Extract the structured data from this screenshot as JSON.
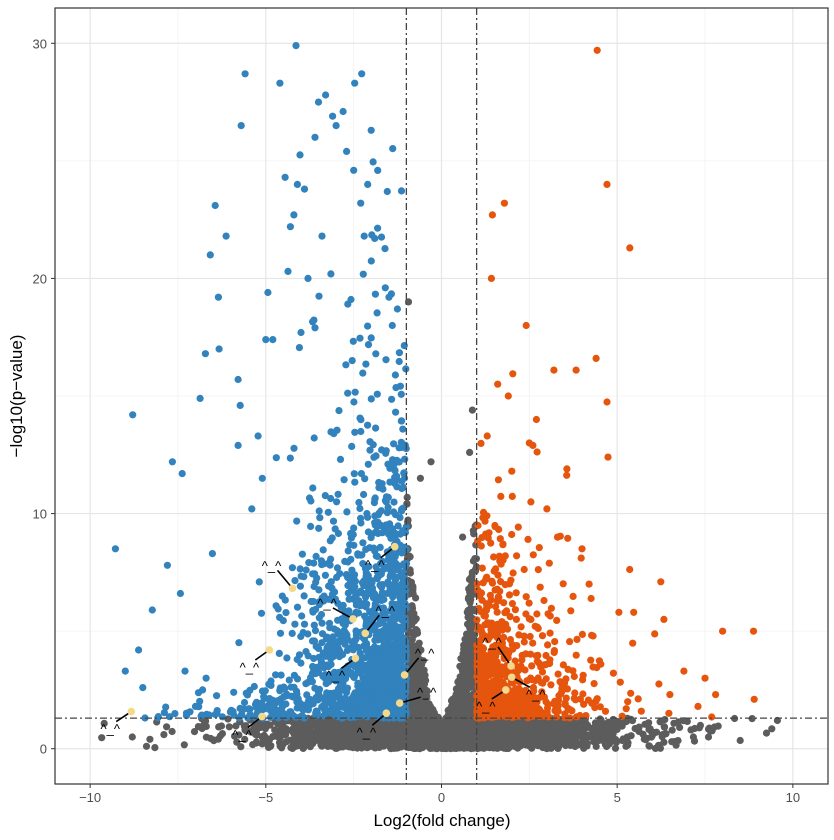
{
  "chart_data": {
    "type": "scatter",
    "title": "",
    "xlabel": "Log2(fold change)",
    "ylabel": "−log10(p−value)",
    "xlim": [
      -11,
      11
    ],
    "ylim": [
      -1.5,
      31.5
    ],
    "x_ticks": [
      -10,
      -5,
      0,
      5,
      10
    ],
    "y_ticks": [
      0,
      10,
      20,
      30
    ],
    "x_tick_labels": [
      "−10",
      "−5",
      "0",
      "5",
      "10"
    ],
    "y_tick_labels": [
      "0",
      "10",
      "20",
      "30"
    ],
    "grid": true,
    "legend": "none",
    "thresholds": {
      "log2fc": [
        -1,
        1
      ],
      "neg_log10_p": 1.3
    },
    "colors": {
      "down": "#3182BD",
      "up": "#E6550D",
      "ns": "#5C5C5C",
      "highlight": "#F5D98B",
      "threshold_line": "#444444"
    },
    "series": [
      {
        "name": "down",
        "points": [
          [
            -5.59,
            28.7
          ],
          [
            -4.14,
            29.9
          ],
          [
            -4.6,
            28.3
          ],
          [
            -2.47,
            28.3
          ],
          [
            -2.27,
            28.7
          ],
          [
            -5.7,
            26.5
          ],
          [
            -6.44,
            23.1
          ],
          [
            -6.13,
            21.8
          ],
          [
            -6.58,
            21.0
          ],
          [
            -6.35,
            19.2
          ],
          [
            -6.72,
            16.8
          ],
          [
            -6.33,
            17.0
          ],
          [
            -6.87,
            14.9
          ],
          [
            -8.79,
            14.2
          ],
          [
            -7.66,
            12.2
          ],
          [
            -7.38,
            11.7
          ],
          [
            -9.28,
            8.5
          ],
          [
            -6.52,
            8.3
          ],
          [
            -7.8,
            7.8
          ],
          [
            -7.43,
            6.6
          ],
          [
            -8.23,
            5.9
          ],
          [
            -8.62,
            4.2
          ],
          [
            -5.79,
            15.7
          ],
          [
            -5.73,
            14.6
          ],
          [
            -5.79,
            12.9
          ],
          [
            -5.22,
            13.3
          ],
          [
            -4.94,
            19.4
          ],
          [
            -4.37,
            20.3
          ],
          [
            -4.45,
            24.3
          ],
          [
            -3.3,
            27.8
          ],
          [
            -3.5,
            27.5
          ],
          [
            -3.1,
            26.9
          ],
          [
            -3.0,
            26.5
          ],
          [
            -2.8,
            27.1
          ],
          [
            -2.7,
            25.4
          ],
          [
            -3.6,
            26.0
          ],
          [
            -2.0,
            26.3
          ],
          [
            -4.1,
            24.0
          ],
          [
            -3.9,
            23.8
          ],
          [
            -2.5,
            24.6
          ],
          [
            -2.3,
            23.2
          ],
          [
            -2.1,
            24.0
          ],
          [
            -4.3,
            22.2
          ],
          [
            -5.0,
            17.4
          ],
          [
            -4.8,
            17.4
          ],
          [
            -5.4,
            10.2
          ],
          [
            -5.1,
            11.5
          ],
          [
            -9.0,
            3.3
          ],
          [
            -8.5,
            2.6
          ],
          [
            -7.3,
            3.3
          ],
          [
            -6.8,
            2.5
          ],
          [
            -6.7,
            3.0
          ],
          [
            -7.0,
            1.8
          ],
          [
            -4.2,
            22.7
          ],
          [
            -3.4,
            21.8
          ],
          [
            -2.2,
            21.8
          ],
          [
            -1.9,
            21.7
          ],
          [
            -3.8,
            20.0
          ],
          [
            -1.6,
            19.6
          ],
          [
            -4.0,
            17.7
          ],
          [
            -3.6,
            17.9
          ],
          [
            -1.4,
            18.0
          ]
        ]
      },
      {
        "name": "up",
        "points": [
          [
            4.43,
            29.7
          ],
          [
            4.71,
            24.0
          ],
          [
            5.36,
            21.3
          ],
          [
            1.79,
            23.2
          ],
          [
            1.45,
            22.7
          ],
          [
            1.42,
            20.0
          ],
          [
            2.41,
            18.0
          ],
          [
            4.4,
            16.6
          ],
          [
            3.83,
            16.1
          ],
          [
            3.2,
            16.1
          ],
          [
            4.74,
            12.4
          ],
          [
            3.57,
            11.9
          ],
          [
            6.24,
            7.1
          ],
          [
            8.0,
            5.0
          ],
          [
            8.88,
            5.0
          ],
          [
            5.05,
            5.8
          ],
          [
            5.47,
            5.8
          ],
          [
            6.33,
            5.5
          ],
          [
            8.9,
            2.1
          ],
          [
            1.9,
            15.0
          ],
          [
            1.6,
            15.5
          ],
          [
            2.7,
            14.0
          ],
          [
            2.5,
            13.0
          ],
          [
            3.3,
            9.0
          ],
          [
            4.0,
            8.5
          ],
          [
            3.0,
            10.2
          ],
          [
            7.5,
            3.0
          ],
          [
            7.3,
            1.8
          ],
          [
            6.9,
            3.3
          ],
          [
            7.8,
            2.3
          ],
          [
            5.3,
            2.0
          ],
          [
            6.5,
            2.3
          ],
          [
            2.6,
            12.9
          ],
          [
            1.3,
            13.3
          ],
          [
            2.0,
            11.8
          ],
          [
            4.2,
            7.0
          ]
        ]
      },
      {
        "name": "ns",
        "points": [
          [
            -0.94,
            19.0
          ],
          [
            0.88,
            14.4
          ],
          [
            9.56,
            1.2
          ],
          [
            8.5,
            0.35
          ],
          [
            -9.67,
            0.47
          ],
          [
            -8.8,
            0.5
          ],
          [
            -8.3,
            0.4
          ],
          [
            -0.3,
            12.2
          ],
          [
            -0.6,
            11.5
          ],
          [
            0.6,
            9.0
          ],
          [
            0.8,
            12.6
          ],
          [
            -7.9,
            0.6
          ],
          [
            7.1,
            0.8
          ],
          [
            7.6,
            0.5
          ]
        ]
      }
    ],
    "dense_clouds": {
      "down_count": 1600,
      "up_count": 800,
      "ns_base_count": 3600,
      "ns_center_count": 1300
    },
    "highlighted": [
      {
        "label": "^_^",
        "point": [
          -4.24,
          6.82
        ]
      },
      {
        "label": "^_^",
        "point": [
          -2.52,
          5.52
        ]
      },
      {
        "label": "^_^",
        "point": [
          -2.17,
          4.91
        ]
      },
      {
        "label": "^_^",
        "point": [
          -1.33,
          8.59
        ]
      },
      {
        "label": "^_^",
        "point": [
          -4.9,
          4.2
        ]
      },
      {
        "label": "^_^",
        "point": [
          -2.45,
          3.85
        ]
      },
      {
        "label": "^_^",
        "point": [
          -1.05,
          3.14
        ]
      },
      {
        "label": "^_^",
        "point": [
          -1.19,
          1.94
        ]
      },
      {
        "label": "^_^",
        "point": [
          -1.57,
          1.51
        ]
      },
      {
        "label": "^_^",
        "point": [
          -5.11,
          1.37
        ]
      },
      {
        "label": "^_^",
        "point": [
          1.98,
          3.52
        ]
      },
      {
        "label": "^_^",
        "point": [
          2.0,
          3.04
        ]
      },
      {
        "label": "^_^",
        "point": [
          1.83,
          2.5
        ]
      },
      {
        "label": "^_^",
        "point": [
          -8.83,
          1.58
        ]
      }
    ]
  }
}
